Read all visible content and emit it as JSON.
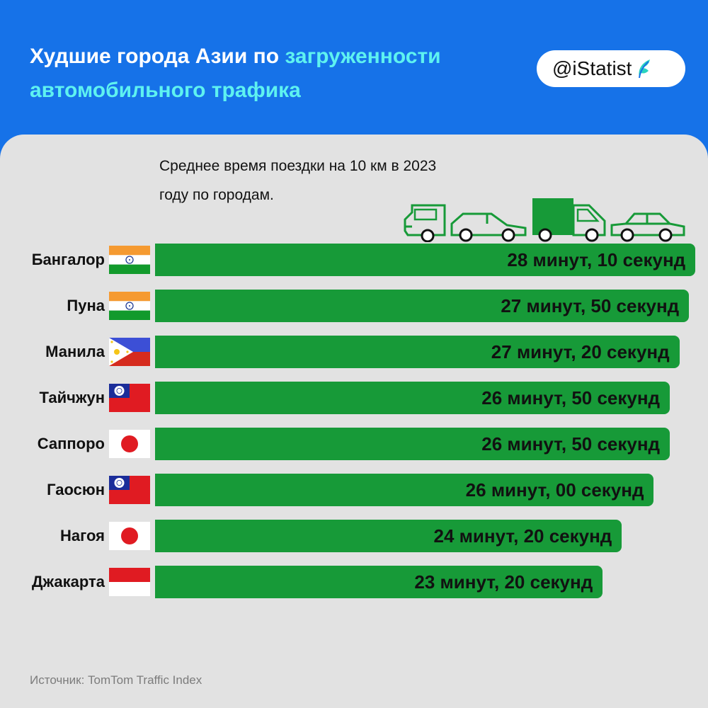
{
  "header": {
    "title_part1": "Худшие города Азии по ",
    "title_accent": "загруженности автомобильного трафика",
    "brand": "@iStatist",
    "background_color": "#1672e8",
    "accent_color": "#5ef2f0"
  },
  "subtitle_line1": "Среднее время поездки на 10 км в 2023",
  "subtitle_line2": "году по городам.",
  "source": "Источник: TomTom Traffic Index",
  "chart_data": {
    "type": "bar",
    "orientation": "horizontal",
    "title": "Худшие города Азии по загруженности автомобильного трафика",
    "subtitle": "Среднее время поездки на 10 км в 2023 году по городам.",
    "bar_color": "#179a38",
    "categories": [
      "Бангалор",
      "Пуна",
      "Манила",
      "Тайчжун",
      "Саппоро",
      "Гаосюн",
      "Нагоя",
      "Джакарта"
    ],
    "flags": [
      "india",
      "india",
      "philippines",
      "taiwan",
      "japan",
      "taiwan",
      "japan",
      "indonesia"
    ],
    "values_seconds": [
      1690,
      1670,
      1640,
      1610,
      1610,
      1560,
      1460,
      1400
    ],
    "labels": [
      "28 минут, 10 секунд",
      "27 минут, 50 секунд",
      "27 минут, 20 секунд",
      "26 минут, 50 секунд",
      "26 минут, 50 секунд",
      "26 минут, 00 секунд",
      "24 минут, 20 секунд",
      "23 минут, 20 секунд"
    ]
  }
}
